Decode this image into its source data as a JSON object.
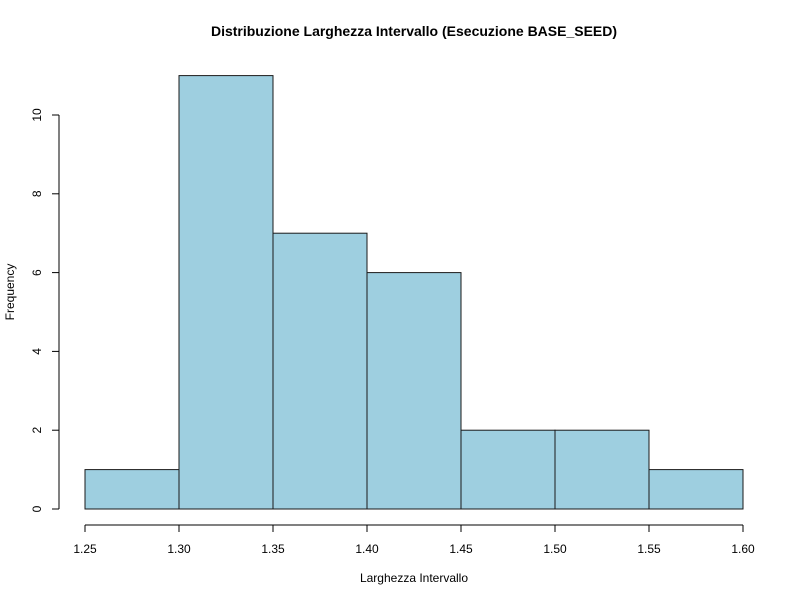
{
  "chart_data": {
    "type": "bar",
    "subtype": "histogram",
    "title": "Distribuzione Larghezza Intervallo (Esecuzione BASE_SEED)",
    "xlabel": "Larghezza Intervallo",
    "ylabel": "Frequency",
    "bins": [
      {
        "start": 1.25,
        "end": 1.3,
        "count": 1
      },
      {
        "start": 1.3,
        "end": 1.35,
        "count": 11
      },
      {
        "start": 1.35,
        "end": 1.4,
        "count": 7
      },
      {
        "start": 1.4,
        "end": 1.45,
        "count": 6
      },
      {
        "start": 1.45,
        "end": 1.5,
        "count": 2
      },
      {
        "start": 1.5,
        "end": 1.55,
        "count": 2
      },
      {
        "start": 1.55,
        "end": 1.6,
        "count": 1
      }
    ],
    "xlim": [
      1.25,
      1.6
    ],
    "ylim": [
      0,
      11
    ],
    "x_ticks": [
      "1.25",
      "1.30",
      "1.35",
      "1.40",
      "1.45",
      "1.50",
      "1.55",
      "1.60"
    ],
    "y_ticks": [
      "0",
      "2",
      "4",
      "6",
      "8",
      "10"
    ],
    "bar_color": "#9ecfe0",
    "bar_edge_color": "#1a1a1a",
    "grid": false,
    "legend": "none"
  }
}
